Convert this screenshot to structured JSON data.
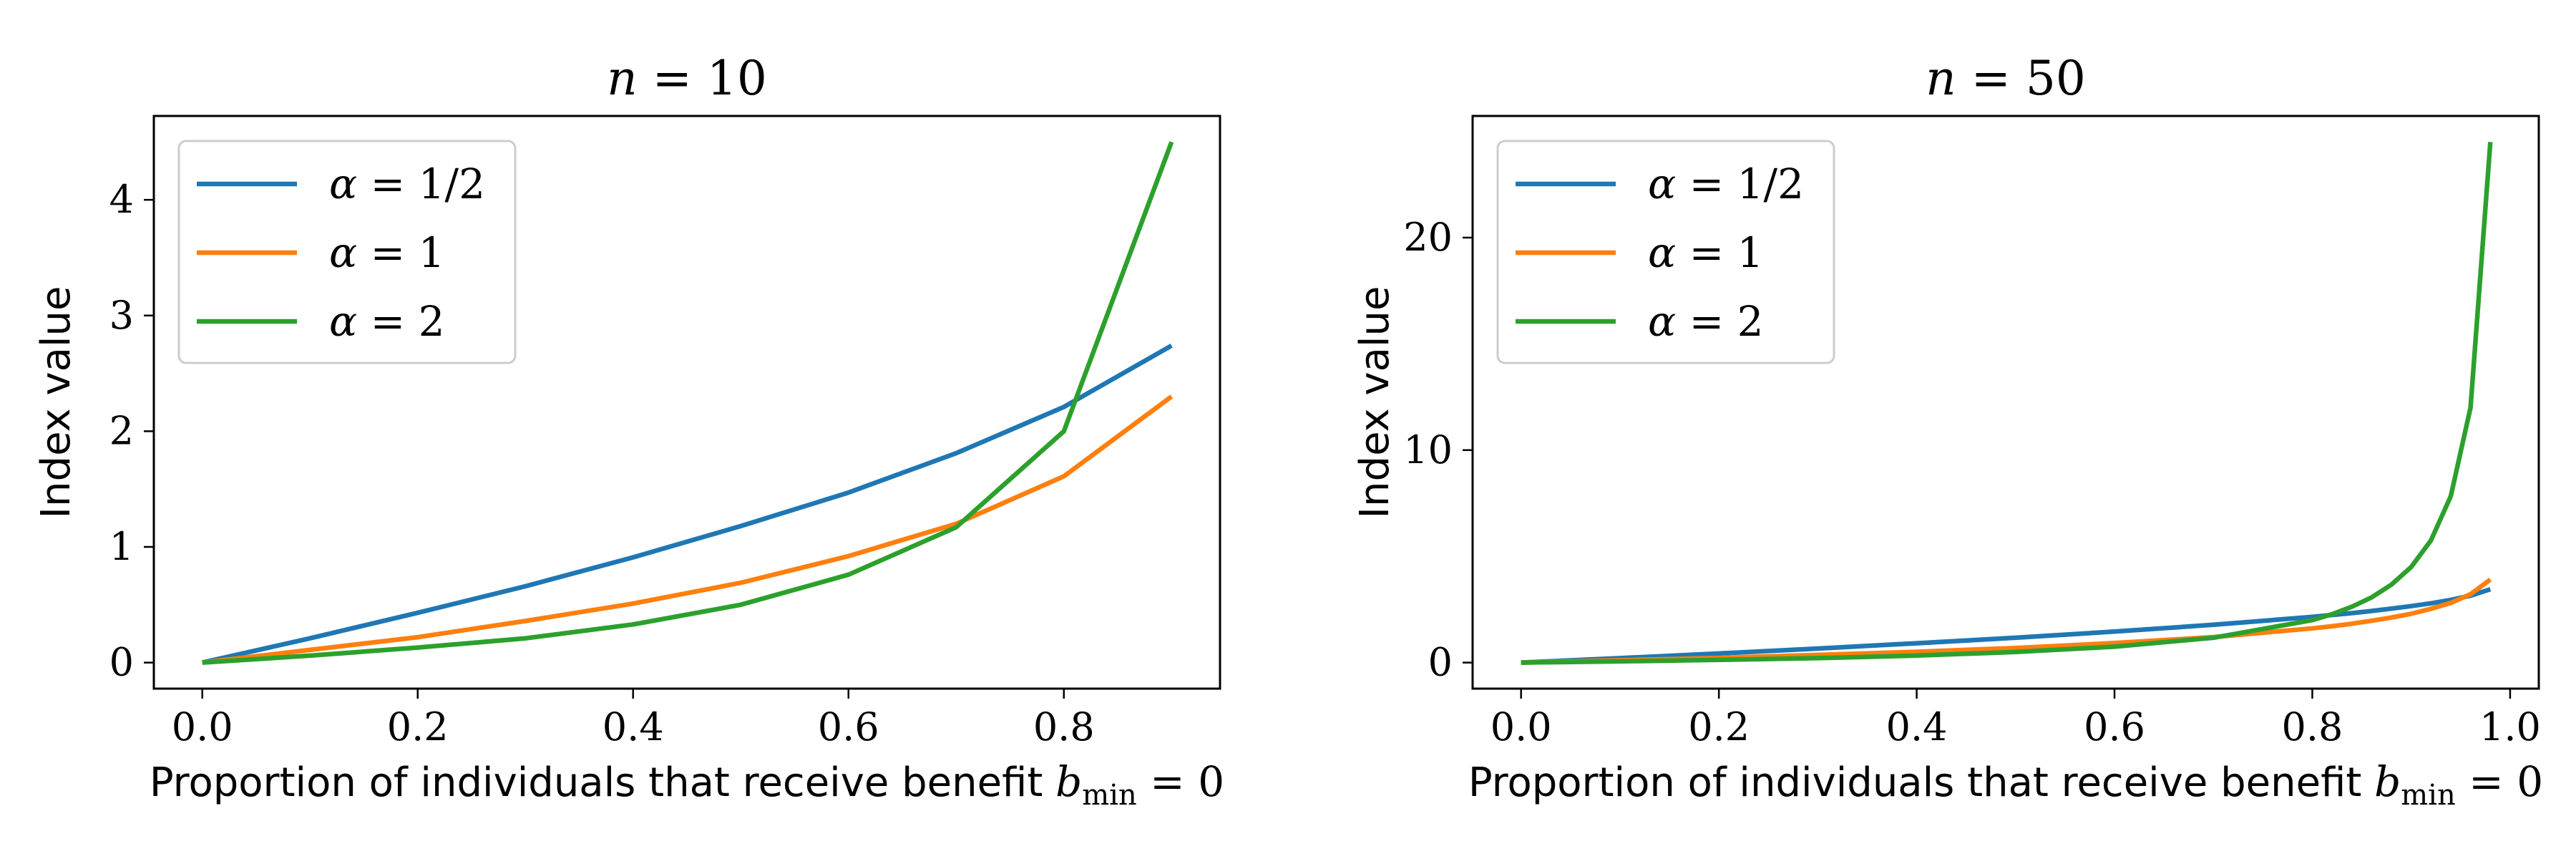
{
  "chart_data": [
    {
      "type": "line",
      "title": {
        "var": "n",
        "eq": " = ",
        "value": "10"
      },
      "xlabel": {
        "text": "Proportion of individuals that receive benefit ",
        "math_var": "b",
        "math_sub": "min",
        "math_tail": " = 0"
      },
      "ylabel": "Index value",
      "xlim": [
        -0.045,
        0.945
      ],
      "ylim": [
        -0.225,
        4.725
      ],
      "xticks": [
        0.0,
        0.2,
        0.4,
        0.6,
        0.8
      ],
      "xtick_labels": [
        "0.0",
        "0.2",
        "0.4",
        "0.6",
        "0.8"
      ],
      "yticks": [
        0,
        1,
        2,
        3,
        4
      ],
      "ytick_labels": [
        "0",
        "1",
        "2",
        "3",
        "4"
      ],
      "grid": false,
      "legend_position": "top-left",
      "x": [
        0.0,
        0.1,
        0.2,
        0.3,
        0.4,
        0.5,
        0.6,
        0.7,
        0.8,
        0.9
      ],
      "series": [
        {
          "name": "α = 1/2",
          "label_var": "α",
          "label_value": "1/2",
          "color": "#1f77b4",
          "values": [
            0.0,
            0.21,
            0.43,
            0.66,
            0.91,
            1.18,
            1.47,
            1.81,
            2.21,
            2.74
          ]
        },
        {
          "name": "α = 1",
          "label_var": "α",
          "label_value": "1",
          "color": "#ff7f0e",
          "values": [
            0.0,
            0.11,
            0.22,
            0.36,
            0.51,
            0.69,
            0.92,
            1.2,
            1.61,
            2.3
          ]
        },
        {
          "name": "α = 2",
          "label_var": "α",
          "label_value": "2",
          "color": "#2ca02c",
          "values": [
            0.0,
            0.06,
            0.13,
            0.21,
            0.33,
            0.5,
            0.76,
            1.17,
            2.0,
            4.5
          ]
        }
      ]
    },
    {
      "type": "line",
      "title": {
        "var": "n",
        "eq": " = ",
        "value": "50"
      },
      "xlabel": {
        "text": "Proportion of individuals that receive benefit ",
        "math_var": "b",
        "math_sub": "min",
        "math_tail": " = 0"
      },
      "ylabel": "Index value",
      "xlim": [
        -0.049,
        1.029
      ],
      "ylim": [
        -1.225,
        25.725
      ],
      "xticks": [
        0.0,
        0.2,
        0.4,
        0.6,
        0.8,
        1.0
      ],
      "xtick_labels": [
        "0.0",
        "0.2",
        "0.4",
        "0.6",
        "0.8",
        "1.0"
      ],
      "yticks": [
        0,
        10,
        20
      ],
      "ytick_labels": [
        "0",
        "10",
        "20"
      ],
      "grid": false,
      "legend_position": "top-left",
      "x": [
        0.0,
        0.1,
        0.2,
        0.3,
        0.4,
        0.5,
        0.6,
        0.7,
        0.8,
        0.82,
        0.84,
        0.86,
        0.88,
        0.9,
        0.92,
        0.94,
        0.96,
        0.98
      ],
      "series": [
        {
          "name": "α = 1/2",
          "label_var": "α",
          "label_value": "1/2",
          "color": "#1f77b4",
          "values": [
            0.0,
            0.21,
            0.43,
            0.66,
            0.91,
            1.17,
            1.46,
            1.78,
            2.15,
            2.24,
            2.33,
            2.43,
            2.54,
            2.66,
            2.79,
            2.95,
            3.15,
            3.45
          ]
        },
        {
          "name": "α = 1",
          "label_var": "α",
          "label_value": "1",
          "color": "#ff7f0e",
          "values": [
            0.0,
            0.11,
            0.22,
            0.36,
            0.51,
            0.69,
            0.92,
            1.2,
            1.61,
            1.71,
            1.83,
            1.97,
            2.12,
            2.3,
            2.53,
            2.81,
            3.22,
            3.91
          ]
        },
        {
          "name": "α = 2",
          "label_var": "α",
          "label_value": "2",
          "color": "#2ca02c",
          "values": [
            0.0,
            0.06,
            0.13,
            0.21,
            0.33,
            0.5,
            0.75,
            1.17,
            2.0,
            2.28,
            2.63,
            3.07,
            3.67,
            4.5,
            5.75,
            7.83,
            12.0,
            24.5
          ]
        }
      ]
    }
  ]
}
